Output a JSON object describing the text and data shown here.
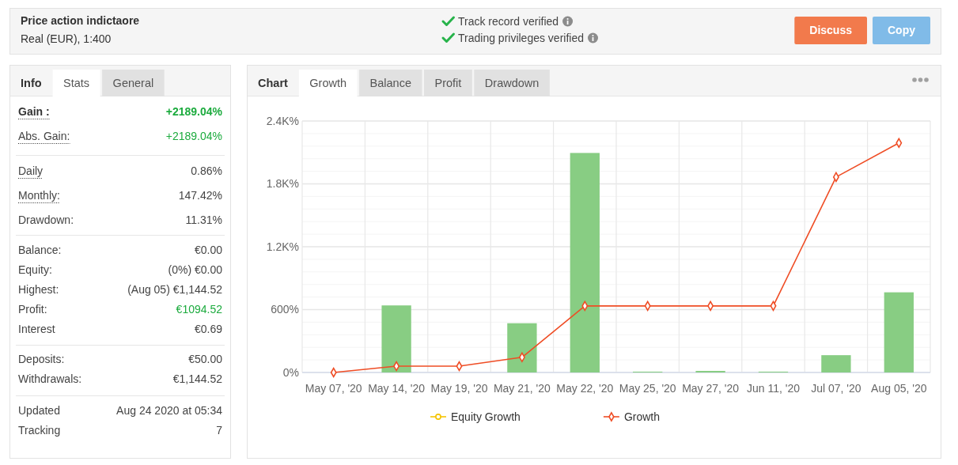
{
  "chart_data": [
    {
      "type": "other",
      "title": "Price action indictaore",
      "subtitle": "Real (EUR), 1:400",
      "annotations": [
        "Track record verified",
        "Trading privileges verified",
        "Discuss",
        "Copy"
      ]
    },
    {
      "type": "other",
      "title": "Info",
      "annotations": [
        "Stats",
        "General",
        "Gain :",
        "+2189.04%",
        "Abs. Gain:",
        "+2189.04%",
        "Daily",
        "0.86%",
        "Monthly:",
        "147.42%",
        "Drawdown:",
        "11.31%",
        "Balance:",
        "€0.00",
        "Equity:",
        "(0%) €0.00",
        "Highest:",
        "(Aug 05) €1,144.52",
        "Profit:",
        "€1094.52",
        "Interest",
        "€0.69",
        "Deposits:",
        "€50.00",
        "Withdrawals:",
        "€1,144.52",
        "Updated",
        "Aug 24 2020 at 05:34",
        "Tracking",
        "7"
      ]
    },
    {
      "type": "bar",
      "title": "Chart",
      "annotations": [
        "Growth",
        "Balance",
        "Profit",
        "Drawdown"
      ],
      "categories": [
        "May 07, '20",
        "May 14, '20",
        "May 19, '20",
        "May 21, '20",
        "May 22, '20",
        "May 25, '20",
        "May 27, '20",
        "Jun 11, '20",
        "Jul 07, '20",
        "Aug 05, '20"
      ],
      "series": [
        {
          "type": "bar",
          "color": "#88cd83",
          "values": [
            null,
            640,
            null,
            470,
            2095,
            8,
            15,
            8,
            165,
            765
          ]
        },
        {
          "type": "line",
          "name": "Equity Growth",
          "color": "#f5c400",
          "marker": "circle",
          "values": [
            null,
            null,
            null,
            null,
            null,
            null,
            null,
            null,
            null,
            null
          ]
        },
        {
          "type": "line",
          "name": "Growth",
          "color": "#ef4d25",
          "marker": "diamond",
          "values": [
            0,
            60,
            60,
            145,
            635,
            635,
            635,
            635,
            1865,
            2190
          ]
        }
      ],
      "ylim": [
        0,
        2400
      ],
      "yticks": [
        {
          "value": 0,
          "label": "0%"
        },
        {
          "value": 120,
          "label": null
        },
        {
          "value": 240,
          "label": null
        },
        {
          "value": 360,
          "label": null
        },
        {
          "value": 480,
          "label": null
        },
        {
          "value": 600,
          "label": "600%"
        },
        {
          "value": 720,
          "label": null
        },
        {
          "value": 840,
          "label": null
        },
        {
          "value": 960,
          "label": null
        },
        {
          "value": 1080,
          "label": null
        },
        {
          "value": 1200,
          "label": "1.2K%"
        },
        {
          "value": 1320,
          "label": null
        },
        {
          "value": 1440,
          "label": null
        },
        {
          "value": 1560,
          "label": null
        },
        {
          "value": 1680,
          "label": null
        },
        {
          "value": 1800,
          "label": "1.8K%"
        },
        {
          "value": 1920,
          "label": null
        },
        {
          "value": 2040,
          "label": null
        },
        {
          "value": 2160,
          "label": null
        },
        {
          "value": 2280,
          "label": null
        },
        {
          "value": 2400,
          "label": "2.4K%"
        }
      ],
      "grid": true,
      "legend": "bottom"
    }
  ]
}
